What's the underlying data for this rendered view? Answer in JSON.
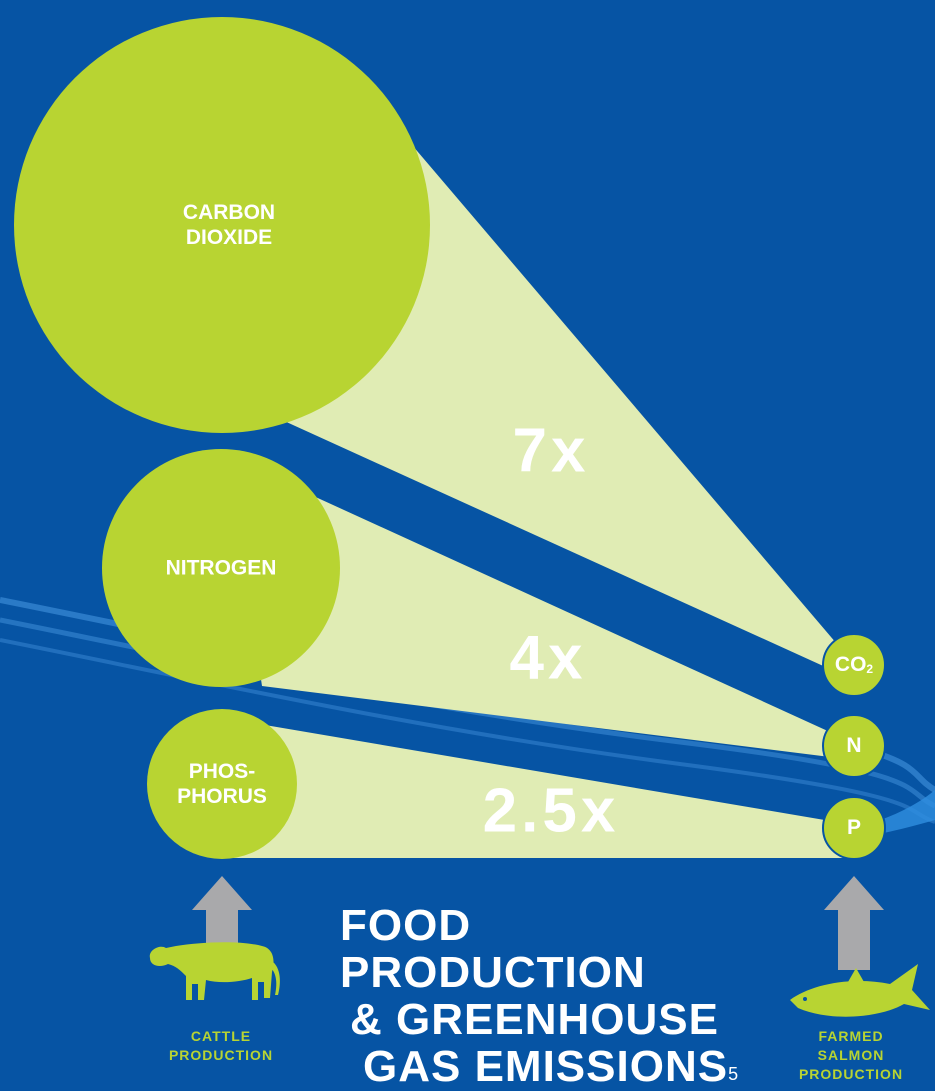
{
  "circles": {
    "carbon_dioxide": "CARBON\nDIOXIDE",
    "nitrogen": "NITROGEN",
    "phosphorus": "PHOS-\nPHORUS"
  },
  "multipliers": {
    "carbon_dioxide": "7x",
    "nitrogen": "4x",
    "phosphorus": "2.5x"
  },
  "small_circles": {
    "co2_main": "CO",
    "co2_sub": "2",
    "nitrogen": "N",
    "phosphorus": "P"
  },
  "title": {
    "line1": "FOOD PRODUCTION",
    "line2": "& GREENHOUSE",
    "line3": "GAS EMISSIONS",
    "footnote": "5"
  },
  "sources": {
    "cattle": "CATTLE\nPRODUCTION",
    "salmon": "FARMED SALMON\nPRODUCTION"
  },
  "icons": {
    "cattle": "cow-icon",
    "salmon": "fish-icon",
    "arrow": "up-arrow-icon"
  },
  "colors": {
    "background": "#0654a4",
    "circle": "#b8d432",
    "beam": "#e0ecb4",
    "arrow": "#a9a9ab",
    "text": "#ffffff"
  }
}
